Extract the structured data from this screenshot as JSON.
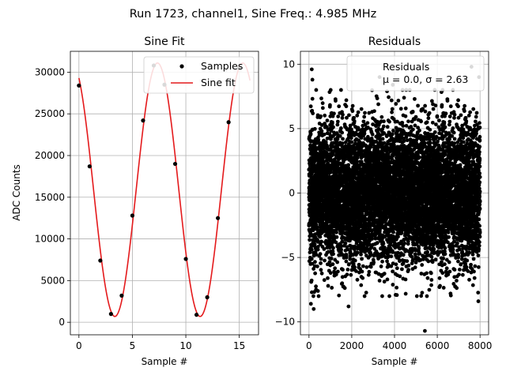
{
  "figure": {
    "suptitle": "Run 1723, channel1, Sine Freq.: 4.985 MHz"
  },
  "chart_data": [
    {
      "type": "line",
      "title": "Sine Fit",
      "xlabel": "Sample #",
      "ylabel": "ADC Counts",
      "xlim": [
        -0.8,
        16.8
      ],
      "ylim": [
        -1500,
        32500
      ],
      "xticks": [
        0,
        5,
        10,
        15
      ],
      "yticks": [
        0,
        5000,
        10000,
        15000,
        20000,
        25000,
        30000
      ],
      "grid": true,
      "legend": {
        "position": "top-right",
        "entries": [
          "Samples",
          "Sine fit"
        ]
      },
      "colors": {
        "samples": "#000000",
        "fit": "#e41a1c"
      },
      "series": [
        {
          "name": "Samples",
          "style": "points",
          "x": [
            0,
            1,
            2,
            3,
            4,
            5,
            6,
            7,
            8,
            9,
            10,
            11,
            12,
            13,
            14,
            15
          ],
          "y": [
            28400,
            18700,
            7400,
            1000,
            3200,
            12800,
            24200,
            30800,
            28500,
            19000,
            7600,
            900,
            3000,
            12500,
            24000,
            30500
          ]
        },
        {
          "name": "Sine fit",
          "style": "line",
          "fit": {
            "offset": 15900,
            "amplitude": 15200,
            "period": 7.975,
            "peak_at": 7.35
          },
          "x_range": [
            0,
            16
          ]
        }
      ]
    },
    {
      "type": "scatter",
      "title": "Residuals",
      "xlabel": "Sample #",
      "ylabel": "",
      "xlim": [
        -400,
        8400
      ],
      "ylim": [
        -11,
        11
      ],
      "xticks": [
        0,
        2000,
        4000,
        6000,
        8000
      ],
      "yticks": [
        -10,
        -5,
        0,
        5,
        10
      ],
      "grid": true,
      "legend": {
        "position": "top-right",
        "entries": [
          "Residuals"
        ]
      },
      "annotation": "μ = 0.0, σ = 2.63",
      "stats": {
        "mean": 0.0,
        "sigma": 2.63,
        "n_samples": 8000
      },
      "colors": {
        "points": "#000000"
      },
      "series": [
        {
          "name": "Residuals",
          "style": "points",
          "x": [
            5420,
            130,
            90,
            1850,
            2600,
            3300,
            7600,
            7950,
            420,
            6100,
            160,
            1550,
            3920,
            4050,
            6620,
            220,
            2450,
            4940,
            7920,
            3650,
            5550,
            2950,
            6900
          ],
          "y": [
            -10.7,
            9.6,
            -8.6,
            -8.8,
            -8.0,
            9.0,
            9.8,
            9.0,
            -7.6,
            -7.3,
            8.8,
            -7.0,
            8.4,
            -7.9,
            -7.8,
            -9.0,
            -6.5,
            7.3,
            -8.4,
            7.9,
            -6.6,
            6.3,
            -6.8
          ]
        }
      ]
    }
  ]
}
